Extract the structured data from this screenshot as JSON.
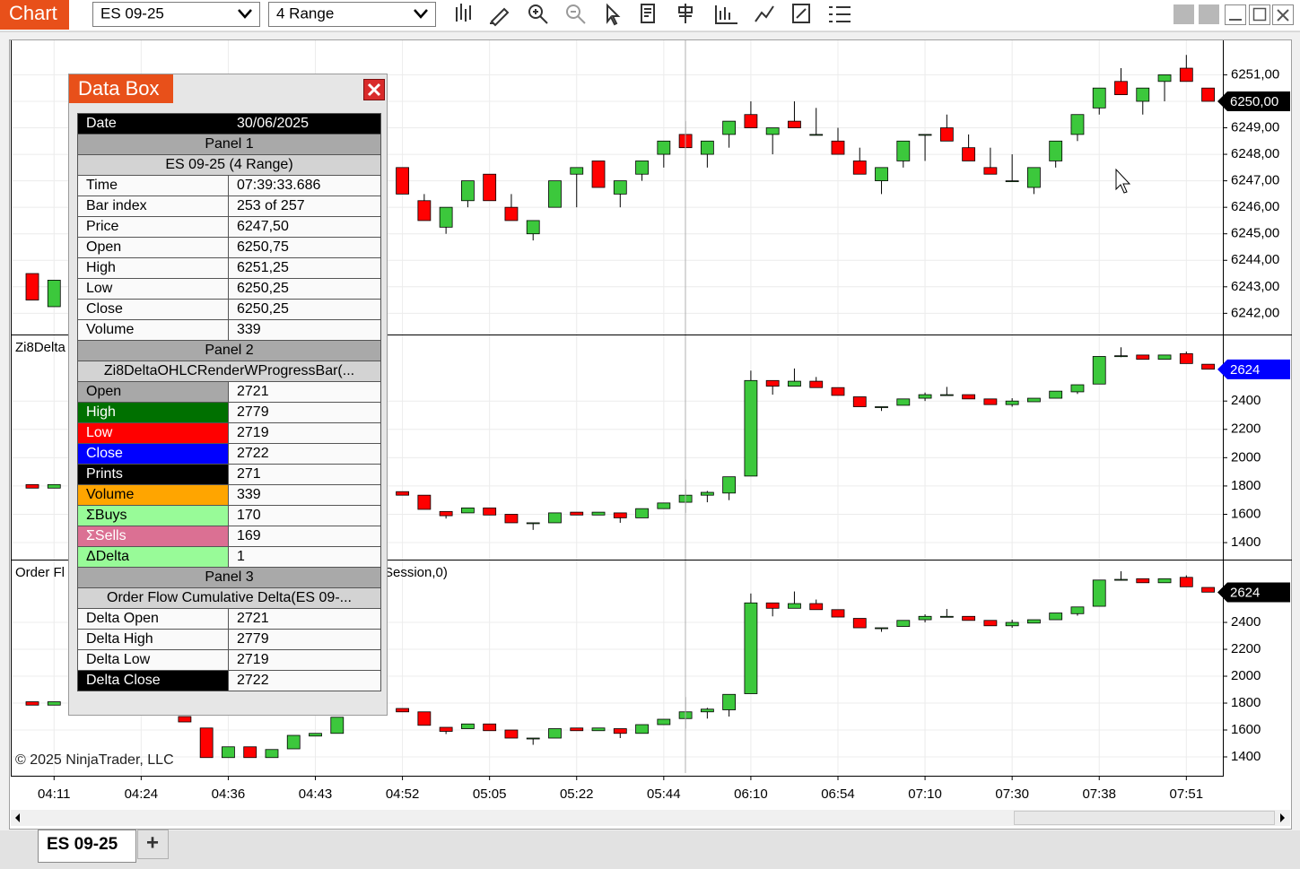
{
  "toolbar": {
    "title": "Chart",
    "instrument": "ES 09-25",
    "bar_type": "4 Range"
  },
  "chart_data": [
    {
      "type": "candlestick",
      "title": null,
      "ylim": [
        6241.2,
        6252.3
      ],
      "yticks": [
        {
          "value": 6242,
          "label": "6242,00"
        },
        {
          "value": 6243,
          "label": "6243,00"
        },
        {
          "value": 6244,
          "label": "6244,00"
        },
        {
          "value": 6245,
          "label": "6245,00"
        },
        {
          "value": 6246,
          "label": "6246,00"
        },
        {
          "value": 6247,
          "label": "6247,00"
        },
        {
          "value": 6248,
          "label": "6248,00"
        },
        {
          "value": 6249,
          "label": "6249,00"
        },
        {
          "value": 6250,
          "label": "6250,00"
        },
        {
          "value": 6251,
          "label": "6251,00"
        }
      ],
      "last": {
        "value": 6250,
        "label": "6250,00",
        "color": "#000000"
      },
      "up_color": "#3cc83c",
      "down_color": "#ff0000",
      "grid": true,
      "open": [
        6243.5,
        6242.25,
        null,
        null,
        null,
        null,
        null,
        null,
        null,
        null,
        null,
        null,
        null,
        null,
        null,
        null,
        null,
        6247.5,
        6246.25,
        6245.25,
        6246.25,
        6247.25,
        6246,
        6245,
        6246,
        6247.25,
        6247.75,
        6246.5,
        6247.25,
        6248,
        6248.75,
        6248,
        6248.75,
        6249.5,
        6248.75,
        6249.25,
        6248.75,
        6248.5,
        6247.75,
        6247,
        6247.75,
        6248.75,
        6249,
        6248.25,
        6247.5,
        6247,
        6246.75,
        6247.75,
        6248.75,
        6249.75,
        6250.75,
        6250,
        6250.75,
        6251.25,
        6250.5
      ],
      "high": [
        6243.5,
        6243.25,
        null,
        null,
        null,
        null,
        null,
        null,
        null,
        null,
        null,
        null,
        null,
        null,
        null,
        null,
        null,
        6247.5,
        6246.5,
        6246,
        6247,
        6247.25,
        6246.5,
        6245.5,
        6247,
        6247.5,
        6247.75,
        6247,
        6247.75,
        6248.5,
        6249.25,
        6248.5,
        6249.25,
        6250,
        6249,
        6250,
        6249.75,
        6249,
        6248.25,
        6247.5,
        6248.5,
        6248.75,
        6249.5,
        6248.75,
        6248.25,
        6248,
        6247.5,
        6248.5,
        6249.5,
        6250.5,
        6251.25,
        6250.5,
        6251,
        6251.75,
        6250.5
      ],
      "low": [
        6242.5,
        6242.25,
        null,
        null,
        null,
        null,
        null,
        null,
        null,
        null,
        null,
        null,
        null,
        null,
        null,
        null,
        null,
        6246.5,
        6245.5,
        6245,
        6246,
        6246.25,
        6245.5,
        6244.75,
        6246,
        6246,
        6246.75,
        6246,
        6247,
        6247.5,
        6248.25,
        6247.5,
        6248.25,
        6249,
        6248,
        6249,
        6248.75,
        6248,
        6247.25,
        6246.5,
        6247.5,
        6247.75,
        6248.5,
        6247.75,
        6247.25,
        6247,
        6246.5,
        6247.5,
        6248.5,
        6249.5,
        6250.25,
        6249.5,
        6250,
        6250.75,
        6250
      ],
      "close": [
        6242.5,
        6243.25,
        null,
        null,
        null,
        null,
        null,
        null,
        null,
        null,
        null,
        null,
        null,
        null,
        null,
        null,
        null,
        6246.5,
        6245.5,
        6246,
        6247,
        6246.25,
        6245.5,
        6245.5,
        6247,
        6247.5,
        6246.75,
        6247,
        6247.75,
        6248.5,
        6248.25,
        6248.5,
        6249.25,
        6249,
        6249,
        6249,
        6248.75,
        6248,
        6247.25,
        6247.5,
        6248.5,
        6248.75,
        6248.5,
        6247.75,
        6247.25,
        6247,
        6247.5,
        6248.5,
        6249.5,
        6250.5,
        6250.25,
        6250.5,
        6251,
        6250.75,
        6250
      ]
    },
    {
      "type": "candlestick",
      "title_fragments": [
        "Zi8Delta"
      ],
      "ylim": [
        1280,
        2870
      ],
      "yticks": [
        1400,
        1600,
        1800,
        2000,
        2200,
        2400
      ],
      "last": {
        "value": 2624,
        "color": "#0000ff"
      },
      "up_color": "#3cc83c",
      "down_color": "#ff0000",
      "grid": true,
      "open": [
        1810,
        1785,
        null,
        null,
        null,
        null,
        null,
        null,
        null,
        null,
        null,
        null,
        null,
        null,
        null,
        null,
        null,
        1760,
        1735,
        1620,
        1610,
        1645,
        1600,
        1540,
        1540,
        1615,
        1595,
        1610,
        1575,
        1640,
        1685,
        1735,
        1750,
        1870,
        2545,
        2505,
        2540,
        2495,
        2430,
        2360,
        2370,
        2420,
        2445,
        2445,
        2415,
        2375,
        2395,
        2420,
        2465,
        2520,
        2720,
        2725,
        2695,
        2735,
        2660
      ],
      "high": [
        1810,
        1810,
        null,
        null,
        null,
        null,
        null,
        null,
        null,
        null,
        null,
        null,
        null,
        null,
        null,
        null,
        null,
        1760,
        1735,
        1620,
        1645,
        1645,
        1600,
        1540,
        1610,
        1615,
        1615,
        1610,
        1640,
        1680,
        1845,
        1765,
        1865,
        2615,
        2545,
        2630,
        2570,
        2495,
        2430,
        2360,
        2415,
        2460,
        2500,
        2445,
        2415,
        2420,
        2420,
        2470,
        2515,
        2715,
        2780,
        2725,
        2725,
        2750,
        2660
      ],
      "low": [
        1785,
        1785,
        null,
        null,
        null,
        null,
        null,
        null,
        null,
        null,
        null,
        null,
        null,
        null,
        null,
        null,
        null,
        1735,
        1635,
        1570,
        1610,
        1595,
        1540,
        1490,
        1540,
        1595,
        1595,
        1540,
        1575,
        1640,
        1610,
        1685,
        1700,
        1870,
        2445,
        2505,
        2495,
        2440,
        2360,
        2330,
        2370,
        2400,
        2440,
        2415,
        2375,
        2360,
        2395,
        2420,
        2450,
        2520,
        2710,
        2695,
        2695,
        2665,
        2625
      ],
      "close": [
        1785,
        1810,
        null,
        null,
        null,
        null,
        null,
        null,
        null,
        null,
        null,
        null,
        null,
        null,
        null,
        null,
        null,
        1735,
        1635,
        1590,
        1645,
        1595,
        1540,
        1540,
        1610,
        1595,
        1615,
        1575,
        1640,
        1680,
        1735,
        1755,
        1865,
        2545,
        2505,
        2540,
        2495,
        2440,
        2360,
        2360,
        2415,
        2445,
        2445,
        2415,
        2375,
        2400,
        2420,
        2470,
        2515,
        2715,
        2720,
        2695,
        2725,
        2665,
        2625
      ]
    },
    {
      "type": "candlestick",
      "title_fragments": [
        "Order Fl",
        "Session,0)"
      ],
      "ylim": [
        1260,
        2867
      ],
      "yticks": [
        1400,
        1600,
        1800,
        2000,
        2200,
        2400
      ],
      "last": {
        "value": 2624,
        "color": "#000000"
      },
      "up_color": "#3cc83c",
      "down_color": "#ff0000",
      "grid": true,
      "open": [
        1810,
        1785,
        null,
        null,
        null,
        null,
        null,
        1700,
        1615,
        1395,
        1475,
        1395,
        1460,
        1555,
        1575,
        null,
        null,
        1760,
        1735,
        1620,
        1610,
        1645,
        1600,
        1540,
        1540,
        1615,
        1595,
        1610,
        1575,
        1640,
        1685,
        1735,
        1750,
        1870,
        2545,
        2505,
        2540,
        2495,
        2430,
        2360,
        2370,
        2420,
        2445,
        2445,
        2415,
        2375,
        2395,
        2420,
        2465,
        2520,
        2720,
        2725,
        2695,
        2735,
        2660
      ],
      "high": [
        1810,
        1810,
        null,
        null,
        null,
        null,
        null,
        1700,
        1615,
        1475,
        1475,
        1455,
        1560,
        1575,
        1695,
        null,
        null,
        1760,
        1735,
        1620,
        1645,
        1645,
        1600,
        1540,
        1610,
        1615,
        1615,
        1610,
        1640,
        1680,
        1845,
        1765,
        1865,
        2615,
        2545,
        2630,
        2570,
        2495,
        2430,
        2360,
        2415,
        2460,
        2500,
        2445,
        2415,
        2420,
        2420,
        2470,
        2515,
        2715,
        2780,
        2725,
        2725,
        2750,
        2660
      ],
      "low": [
        1785,
        1785,
        null,
        null,
        null,
        null,
        null,
        1660,
        1395,
        1395,
        1395,
        1395,
        1460,
        1555,
        1575,
        null,
        null,
        1735,
        1635,
        1570,
        1610,
        1595,
        1540,
        1490,
        1540,
        1595,
        1595,
        1540,
        1575,
        1640,
        1610,
        1685,
        1700,
        1870,
        2445,
        2505,
        2495,
        2440,
        2360,
        2330,
        2370,
        2400,
        2440,
        2415,
        2375,
        2360,
        2395,
        2420,
        2450,
        2520,
        2710,
        2695,
        2695,
        2665,
        2625
      ],
      "close": [
        1785,
        1810,
        null,
        null,
        null,
        null,
        null,
        1660,
        1395,
        1475,
        1395,
        1455,
        1560,
        1575,
        1695,
        null,
        null,
        1735,
        1635,
        1590,
        1645,
        1595,
        1540,
        1540,
        1610,
        1595,
        1615,
        1575,
        1640,
        1680,
        1735,
        1755,
        1865,
        2545,
        2505,
        2540,
        2495,
        2440,
        2360,
        2360,
        2415,
        2445,
        2445,
        2415,
        2375,
        2400,
        2420,
        2470,
        2515,
        2715,
        2720,
        2695,
        2725,
        2665,
        2625
      ]
    }
  ],
  "time_labels": [
    "04:11",
    "04:24",
    "04:36",
    "04:43",
    "04:52",
    "05:05",
    "05:22",
    "05:44",
    "06:10",
    "06:54",
    "07:10",
    "07:30",
    "07:38",
    "07:51"
  ],
  "copyright": "© 2025 NinjaTrader, LLC",
  "data_box": {
    "title": "Data Box",
    "date": {
      "label": "Date",
      "value": "30/06/2025"
    },
    "sections": [
      {
        "title": "Panel 1",
        "subtitle": "ES 09-25 (4 Range)",
        "rows": [
          {
            "label": "Time",
            "value": "07:39:33.686"
          },
          {
            "label": "Bar index",
            "value": "253 of 257"
          },
          {
            "label": "Price",
            "value": "6247,50"
          },
          {
            "label": "Open",
            "value": "6250,75"
          },
          {
            "label": "High",
            "value": "6251,25"
          },
          {
            "label": "Low",
            "value": "6250,25"
          },
          {
            "label": "Close",
            "value": "6250,25"
          },
          {
            "label": "Volume",
            "value": "339"
          }
        ]
      },
      {
        "title": "Panel 2",
        "subtitle": "Zi8DeltaOHLCRenderWProgressBar(...",
        "rows": [
          {
            "label": "Open",
            "value": "2721",
            "color": "#a8a8a8",
            "text_color": "#000000"
          },
          {
            "label": "High",
            "value": "2779",
            "color": "#007000",
            "text_color": "#ffffff"
          },
          {
            "label": "Low",
            "value": "2719",
            "color": "#ff0000",
            "text_color": "#ffffff"
          },
          {
            "label": "Close",
            "value": "2722",
            "color": "#0000ff",
            "text_color": "#ffffff"
          },
          {
            "label": "Prints",
            "value": "271",
            "color": "#000000",
            "text_color": "#ffffff"
          },
          {
            "label": "Volume",
            "value": "339",
            "color": "#ffa500",
            "text_color": "#000000"
          },
          {
            "label": "ΣBuys",
            "value": "170",
            "color": "#98fb98",
            "text_color": "#000000"
          },
          {
            "label": "ΣSells",
            "value": "169",
            "color": "#db7093",
            "text_color": "#ffffff"
          },
          {
            "label": "ΔDelta",
            "value": "1",
            "color": "#98fb98",
            "text_color": "#000000"
          }
        ]
      },
      {
        "title": "Panel 3",
        "subtitle": "Order Flow Cumulative Delta(ES 09-...",
        "rows": [
          {
            "label": "Delta Open",
            "value": "2721"
          },
          {
            "label": "Delta High",
            "value": "2779"
          },
          {
            "label": "Delta Low",
            "value": "2719"
          },
          {
            "label": "Delta Close",
            "value": "2722",
            "color": "#000000",
            "text_color": "#ffffff"
          }
        ]
      }
    ]
  },
  "tabs": {
    "active": "ES 09-25",
    "add": "+"
  }
}
